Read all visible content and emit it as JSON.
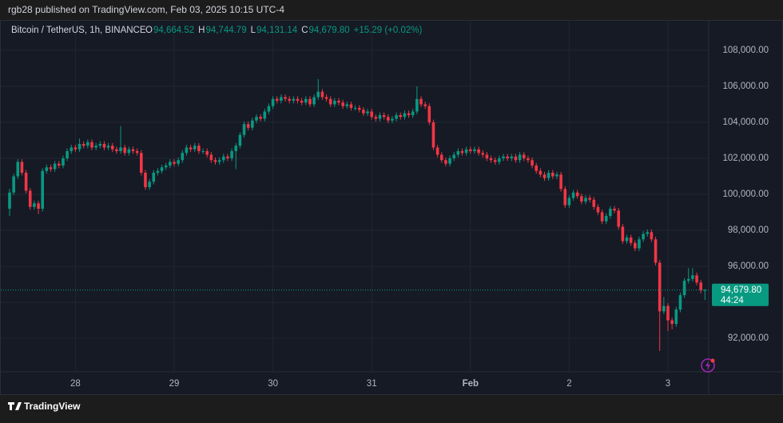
{
  "header": {
    "published": "rgb28 published on TradingView.com, Feb 03, 2025 10:15 UTC-4"
  },
  "footer": {
    "brand": "TradingView"
  },
  "chart_data": {
    "type": "candlestick",
    "symbol": "Bitcoin / TetherUS, 1h, BINANCE",
    "legend_items": [
      {
        "label": "O",
        "value": "94,664.52"
      },
      {
        "label": "H",
        "value": "94,744.79"
      },
      {
        "label": "L",
        "value": "94,131.14"
      },
      {
        "label": "C",
        "value": "94,679.80"
      }
    ],
    "change": "+15.29 (+0.02%)",
    "last_price_label": "94,679.80",
    "countdown": "44:24",
    "up_color": "#089981",
    "down_color": "#f23645",
    "grid": true,
    "ylim": [
      90140,
      109640
    ],
    "yticks": [
      {
        "value": 92000,
        "label": "92,000.00"
      },
      {
        "value": 94000,
        "label": "94,000.00"
      },
      {
        "value": 96000,
        "label": "96,000.00"
      },
      {
        "value": 98000,
        "label": "98,000.00"
      },
      {
        "value": 100000,
        "label": "100,000.00"
      },
      {
        "value": 102000,
        "label": "102,000.00"
      },
      {
        "value": 104000,
        "label": "104,000.00"
      },
      {
        "value": 106000,
        "label": "106,000.00"
      },
      {
        "value": 108000,
        "label": "108,000.00"
      }
    ],
    "categories": [
      null,
      null,
      null,
      null,
      null,
      null,
      null,
      null,
      null,
      null,
      null,
      null,
      null,
      null,
      null,
      null,
      "28",
      null,
      null,
      null,
      null,
      null,
      null,
      null,
      null,
      null,
      null,
      null,
      null,
      null,
      null,
      null,
      null,
      null,
      null,
      null,
      null,
      null,
      null,
      null,
      "29",
      null,
      null,
      null,
      null,
      null,
      null,
      null,
      null,
      null,
      null,
      null,
      null,
      null,
      null,
      null,
      null,
      null,
      null,
      null,
      null,
      null,
      null,
      null,
      "30",
      null,
      null,
      null,
      null,
      null,
      null,
      null,
      null,
      null,
      null,
      null,
      null,
      null,
      null,
      null,
      null,
      null,
      null,
      null,
      null,
      null,
      null,
      null,
      "31",
      null,
      null,
      null,
      null,
      null,
      null,
      null,
      null,
      null,
      null,
      null,
      null,
      null,
      null,
      null,
      null,
      null,
      null,
      null,
      null,
      null,
      null,
      null,
      "Feb",
      null,
      null,
      null,
      null,
      null,
      null,
      null,
      null,
      null,
      null,
      null,
      null,
      null,
      null,
      null,
      null,
      null,
      null,
      null,
      null,
      null,
      null,
      null,
      "2",
      null,
      null,
      null,
      null,
      null,
      null,
      null,
      null,
      null,
      null,
      null,
      null,
      null,
      null,
      null,
      null,
      null,
      null,
      null,
      null,
      null,
      null,
      null,
      "3",
      null,
      null,
      null,
      null,
      null,
      null,
      null,
      null,
      null
    ],
    "open": [
      99200,
      100100,
      101000,
      101800,
      101200,
      100200,
      99300,
      99500,
      99200,
      101300,
      101500,
      101400,
      101700,
      101600,
      102000,
      102400,
      102600,
      102500,
      102800,
      102700,
      102900,
      102600,
      102700,
      102800,
      102600,
      102700,
      102500,
      102400,
      102600,
      102300,
      102500,
      102400,
      102300,
      101200,
      100400,
      100700,
      101200,
      101300,
      101500,
      101600,
      101800,
      101700,
      101900,
      102300,
      102600,
      102500,
      102700,
      102400,
      102400,
      102200,
      101900,
      101800,
      101900,
      102100,
      102000,
      102400,
      102700,
      103300,
      103900,
      103700,
      104100,
      104300,
      104200,
      104600,
      104900,
      105300,
      105200,
      105400,
      105300,
      105200,
      105300,
      105200,
      105100,
      105300,
      105000,
      105400,
      105700,
      105400,
      105300,
      105000,
      105200,
      105100,
      104900,
      105000,
      104800,
      104800,
      104700,
      104500,
      104600,
      104300,
      104200,
      104400,
      104300,
      104100,
      104200,
      104400,
      104300,
      104500,
      104400,
      104600,
      105300,
      105000,
      104900,
      104000,
      102600,
      102200,
      101900,
      101700,
      102000,
      102200,
      102400,
      102300,
      102500,
      102400,
      102500,
      102300,
      102200,
      102000,
      101900,
      101800,
      102000,
      102100,
      102000,
      102100,
      101900,
      102200,
      102000,
      101900,
      101600,
      101300,
      101100,
      100900,
      101200,
      101000,
      101100,
      100300,
      99400,
      99800,
      100100,
      99900,
      99600,
      99800,
      99700,
      99300,
      99000,
      98500,
      98800,
      99200,
      99100,
      98200,
      97400,
      97600,
      97300,
      97000,
      97500,
      97800,
      97900,
      97500,
      96200,
      93500,
      93800,
      93000,
      92800,
      93600,
      94400,
      95200,
      95300,
      95500,
      95100,
      94664.52
    ],
    "high": [
      100300,
      101150,
      101950,
      101950,
      101350,
      100350,
      99650,
      99650,
      101450,
      101650,
      101650,
      101850,
      101850,
      102150,
      102550,
      102750,
      102750,
      103100,
      102950,
      103050,
      103050,
      102850,
      102950,
      102950,
      102850,
      102850,
      102650,
      103800,
      102750,
      102650,
      102650,
      102550,
      102450,
      101350,
      100850,
      101350,
      101450,
      101650,
      101750,
      101950,
      101950,
      102050,
      102450,
      102750,
      102750,
      102850,
      102850,
      102550,
      102550,
      102350,
      102050,
      102050,
      102250,
      102250,
      102550,
      102850,
      103450,
      104050,
      104050,
      104250,
      104450,
      104450,
      104750,
      105050,
      105450,
      105450,
      105550,
      105550,
      105450,
      105450,
      105450,
      105350,
      105450,
      105450,
      105550,
      106400,
      105850,
      105550,
      105450,
      105350,
      105350,
      105250,
      105150,
      105150,
      104950,
      104950,
      104850,
      104750,
      104750,
      104450,
      104550,
      104550,
      104450,
      104350,
      104550,
      104550,
      104650,
      104650,
      104750,
      106000,
      105450,
      105150,
      105050,
      104150,
      102750,
      102350,
      102050,
      102150,
      102350,
      102550,
      102550,
      102650,
      102650,
      102650,
      102650,
      102450,
      102350,
      102150,
      102050,
      102150,
      102250,
      102250,
      102250,
      102250,
      102350,
      102350,
      102150,
      102050,
      101750,
      101450,
      101250,
      101350,
      101350,
      101250,
      101250,
      100450,
      99950,
      100250,
      100250,
      100050,
      99950,
      99950,
      99850,
      99450,
      99150,
      98950,
      99350,
      99350,
      99250,
      98350,
      97750,
      97750,
      97450,
      97650,
      97950,
      98050,
      98050,
      97650,
      96350,
      94300,
      93950,
      93150,
      93750,
      94550,
      95350,
      95900,
      95900,
      95650,
      95250,
      94744.79
    ],
    "low": [
      98800,
      99950,
      100850,
      101050,
      100050,
      99150,
      99150,
      98900,
      99050,
      101150,
      101250,
      101250,
      101450,
      101450,
      101850,
      102250,
      102350,
      102350,
      102550,
      102550,
      102450,
      102450,
      102550,
      102450,
      102450,
      102350,
      102250,
      102250,
      102150,
      102150,
      102250,
      102150,
      101050,
      100250,
      100250,
      100550,
      101050,
      101150,
      101350,
      101450,
      101550,
      101550,
      101750,
      102150,
      102350,
      102350,
      102250,
      102250,
      102050,
      101750,
      101650,
      101650,
      101750,
      101850,
      101850,
      101400,
      102550,
      103150,
      103550,
      103550,
      103950,
      104050,
      104050,
      104450,
      104750,
      105050,
      105050,
      105150,
      105050,
      105050,
      105050,
      104950,
      104950,
      104850,
      104850,
      105250,
      105250,
      105150,
      104850,
      104850,
      104950,
      104750,
      104750,
      104650,
      104650,
      104550,
      104350,
      104350,
      104150,
      104050,
      104050,
      104150,
      103950,
      103950,
      104050,
      104150,
      104150,
      104250,
      104250,
      104450,
      104850,
      104750,
      103850,
      102450,
      102050,
      101750,
      101550,
      101550,
      101850,
      102050,
      102150,
      102150,
      102250,
      102250,
      102150,
      102050,
      101850,
      101750,
      101650,
      101650,
      101850,
      101850,
      101850,
      101750,
      101750,
      101850,
      101750,
      101450,
      101150,
      100950,
      100750,
      100750,
      100850,
      100850,
      100150,
      99250,
      99250,
      99650,
      99750,
      99450,
      99450,
      99550,
      99150,
      98850,
      98350,
      98350,
      98650,
      98950,
      98050,
      97250,
      97250,
      97150,
      96850,
      96850,
      97350,
      97650,
      97350,
      96050,
      91300,
      93350,
      92400,
      92500,
      92650,
      93450,
      94250,
      95050,
      95150,
      94950,
      94500,
      94131.14
    ],
    "close": [
      100100,
      101000,
      101800,
      101200,
      100200,
      99300,
      99500,
      99200,
      101300,
      101500,
      101400,
      101700,
      101600,
      102000,
      102400,
      102600,
      102500,
      102800,
      102700,
      102900,
      102600,
      102700,
      102800,
      102600,
      102700,
      102500,
      102400,
      102600,
      102300,
      102500,
      102400,
      102300,
      101200,
      100400,
      100700,
      101200,
      101300,
      101500,
      101600,
      101800,
      101700,
      101900,
      102300,
      102600,
      102500,
      102700,
      102400,
      102400,
      102200,
      101900,
      101800,
      101900,
      102100,
      102000,
      102400,
      102700,
      103300,
      103900,
      103700,
      104100,
      104300,
      104200,
      104600,
      104900,
      105300,
      105200,
      105400,
      105300,
      105200,
      105300,
      105200,
      105100,
      105300,
      105000,
      105400,
      105700,
      105400,
      105300,
      105000,
      105200,
      105100,
      104900,
      105000,
      104800,
      104800,
      104700,
      104500,
      104600,
      104300,
      104200,
      104400,
      104300,
      104100,
      104200,
      104400,
      104300,
      104500,
      104400,
      104600,
      105300,
      105000,
      104900,
      104000,
      102600,
      102200,
      101900,
      101700,
      102000,
      102200,
      102400,
      102300,
      102500,
      102400,
      102500,
      102300,
      102200,
      102000,
      101900,
      101800,
      102000,
      102100,
      102000,
      102100,
      101900,
      102200,
      102000,
      101900,
      101600,
      101300,
      101100,
      100900,
      101200,
      101000,
      101100,
      100300,
      99400,
      99800,
      100100,
      99900,
      99600,
      99800,
      99700,
      99300,
      99000,
      98500,
      98800,
      99200,
      99100,
      98200,
      97400,
      97600,
      97300,
      97000,
      97500,
      97800,
      97900,
      97500,
      96200,
      93500,
      93800,
      93000,
      92800,
      93600,
      94400,
      95200,
      95300,
      95500,
      95100,
      94664.52,
      94679.8
    ]
  }
}
